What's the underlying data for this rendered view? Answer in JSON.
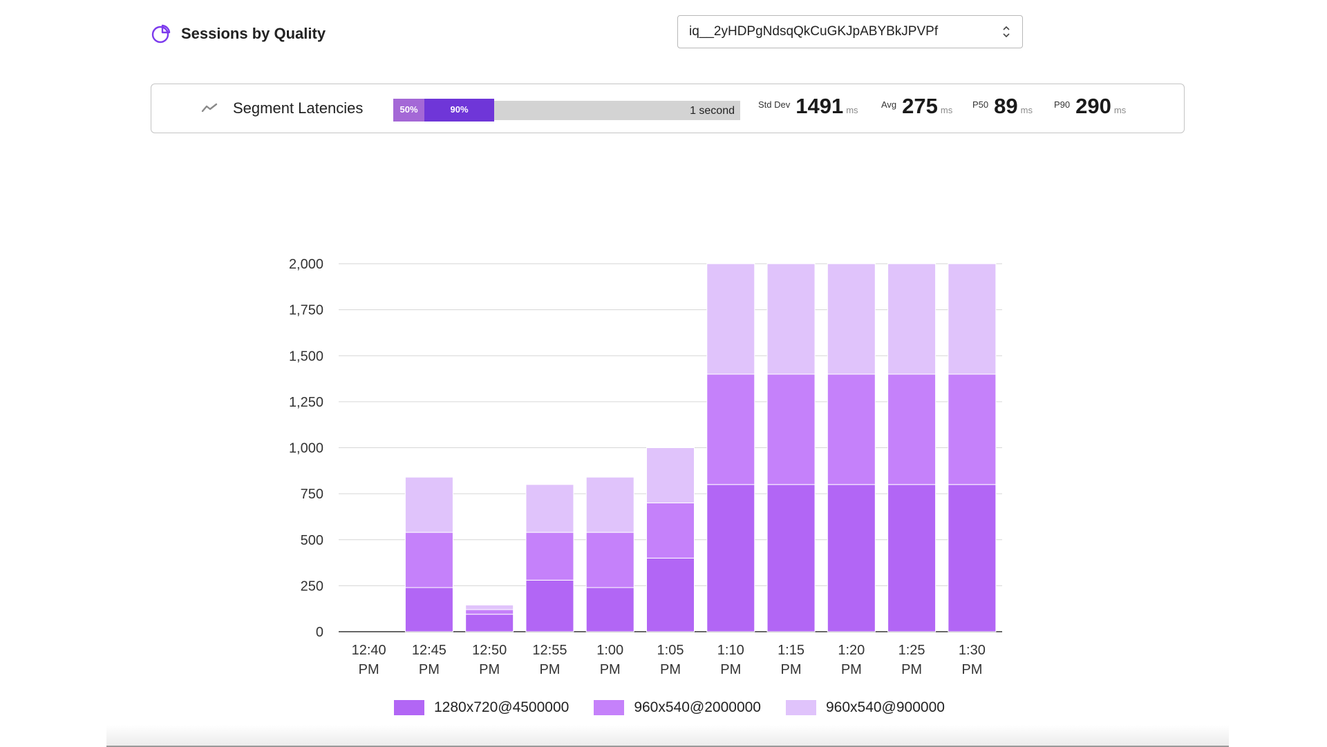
{
  "header": {
    "title": "Sessions by Quality",
    "icon": "pie-chart-icon",
    "accent": "#7c3aed"
  },
  "selector": {
    "value": "iq__2yHDPgNdsqQkCuGKJpABYBkJPVPf"
  },
  "latency": {
    "label": "Segment Latencies",
    "icon": "trend-line-icon",
    "p50_label": "50%",
    "p90_label": "90%",
    "p50_fraction": 0.09,
    "p90_fraction": 0.29,
    "scale_label": "1 second",
    "stats": [
      {
        "label": "Std Dev",
        "value": "1491",
        "unit": "ms"
      },
      {
        "label": "Avg",
        "value": "275",
        "unit": "ms"
      },
      {
        "label": "P50",
        "value": "89",
        "unit": "ms"
      },
      {
        "label": "P90",
        "value": "290",
        "unit": "ms"
      }
    ]
  },
  "chart_data": {
    "type": "bar",
    "stacked": true,
    "categories": [
      "12:40 PM",
      "12:45 PM",
      "12:50 PM",
      "12:55 PM",
      "1:00 PM",
      "1:05 PM",
      "1:10 PM",
      "1:15 PM",
      "1:20 PM",
      "1:25 PM",
      "1:30 PM"
    ],
    "series": [
      {
        "name": "1280x720@4500000",
        "color": "#b266f5",
        "values": [
          0,
          240,
          95,
          280,
          240,
          400,
          800,
          800,
          800,
          800,
          800
        ]
      },
      {
        "name": "960x540@2000000",
        "color": "#c581fa",
        "values": [
          0,
          300,
          25,
          260,
          300,
          300,
          600,
          600,
          600,
          600,
          600
        ]
      },
      {
        "name": "960x540@900000",
        "color": "#e0c3fb",
        "values": [
          0,
          300,
          25,
          260,
          300,
          300,
          600,
          600,
          600,
          600,
          600
        ]
      }
    ],
    "yticks": [
      "0",
      "250",
      "500",
      "750",
      "1,000",
      "1,250",
      "1,500",
      "1,750",
      "2,000"
    ],
    "ylim": [
      0,
      2000
    ],
    "grid": true,
    "legend": "bottom"
  }
}
